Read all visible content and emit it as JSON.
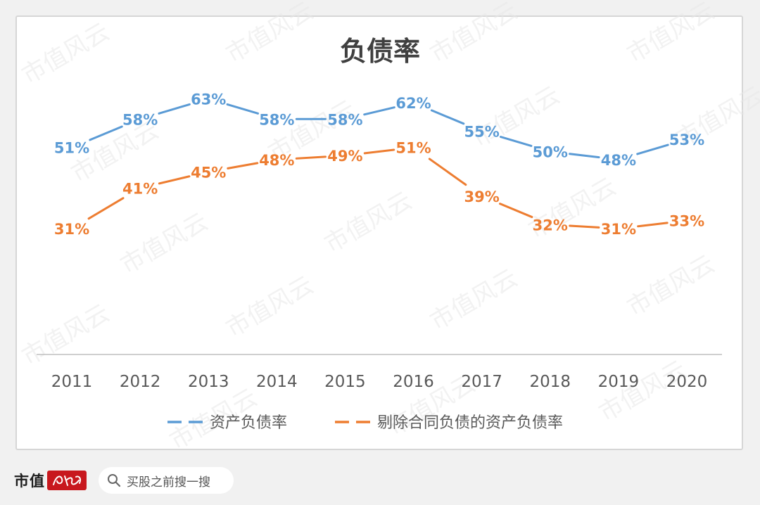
{
  "colors": {
    "series1": "#5b9bd5",
    "series2": "#ed7d31",
    "axis_line": "#bfbfbf",
    "tick_text": "#595959",
    "title_text": "#404040",
    "watermark": "#e7e7e7",
    "brand_seal": "#c8181e"
  },
  "watermark_text": "市值风云",
  "chart_data": {
    "type": "line",
    "title": "负债率",
    "categories": [
      "2011",
      "2012",
      "2013",
      "2014",
      "2015",
      "2016",
      "2017",
      "2018",
      "2019",
      "2020"
    ],
    "series": [
      {
        "name": "资产负债率",
        "values": [
          51,
          58,
          63,
          58,
          58,
          62,
          55,
          50,
          48,
          53
        ],
        "labels": [
          "51%",
          "58%",
          "63%",
          "58%",
          "58%",
          "62%",
          "55%",
          "50%",
          "48%",
          "53%"
        ]
      },
      {
        "name": "剔除合同负债的资产负债率",
        "values": [
          31,
          41,
          45,
          48,
          49,
          51,
          39,
          32,
          31,
          33
        ],
        "labels": [
          "31%",
          "41%",
          "45%",
          "48%",
          "49%",
          "51%",
          "39%",
          "32%",
          "31%",
          "33%"
        ]
      }
    ],
    "unit": "%",
    "y_range": [
      0,
      70
    ],
    "legend_position": "bottom",
    "grid": false
  },
  "footer": {
    "brand": "市值",
    "brand_seal_text": "风云",
    "search_icon": "search-icon",
    "search_text": "买股之前搜一搜"
  }
}
